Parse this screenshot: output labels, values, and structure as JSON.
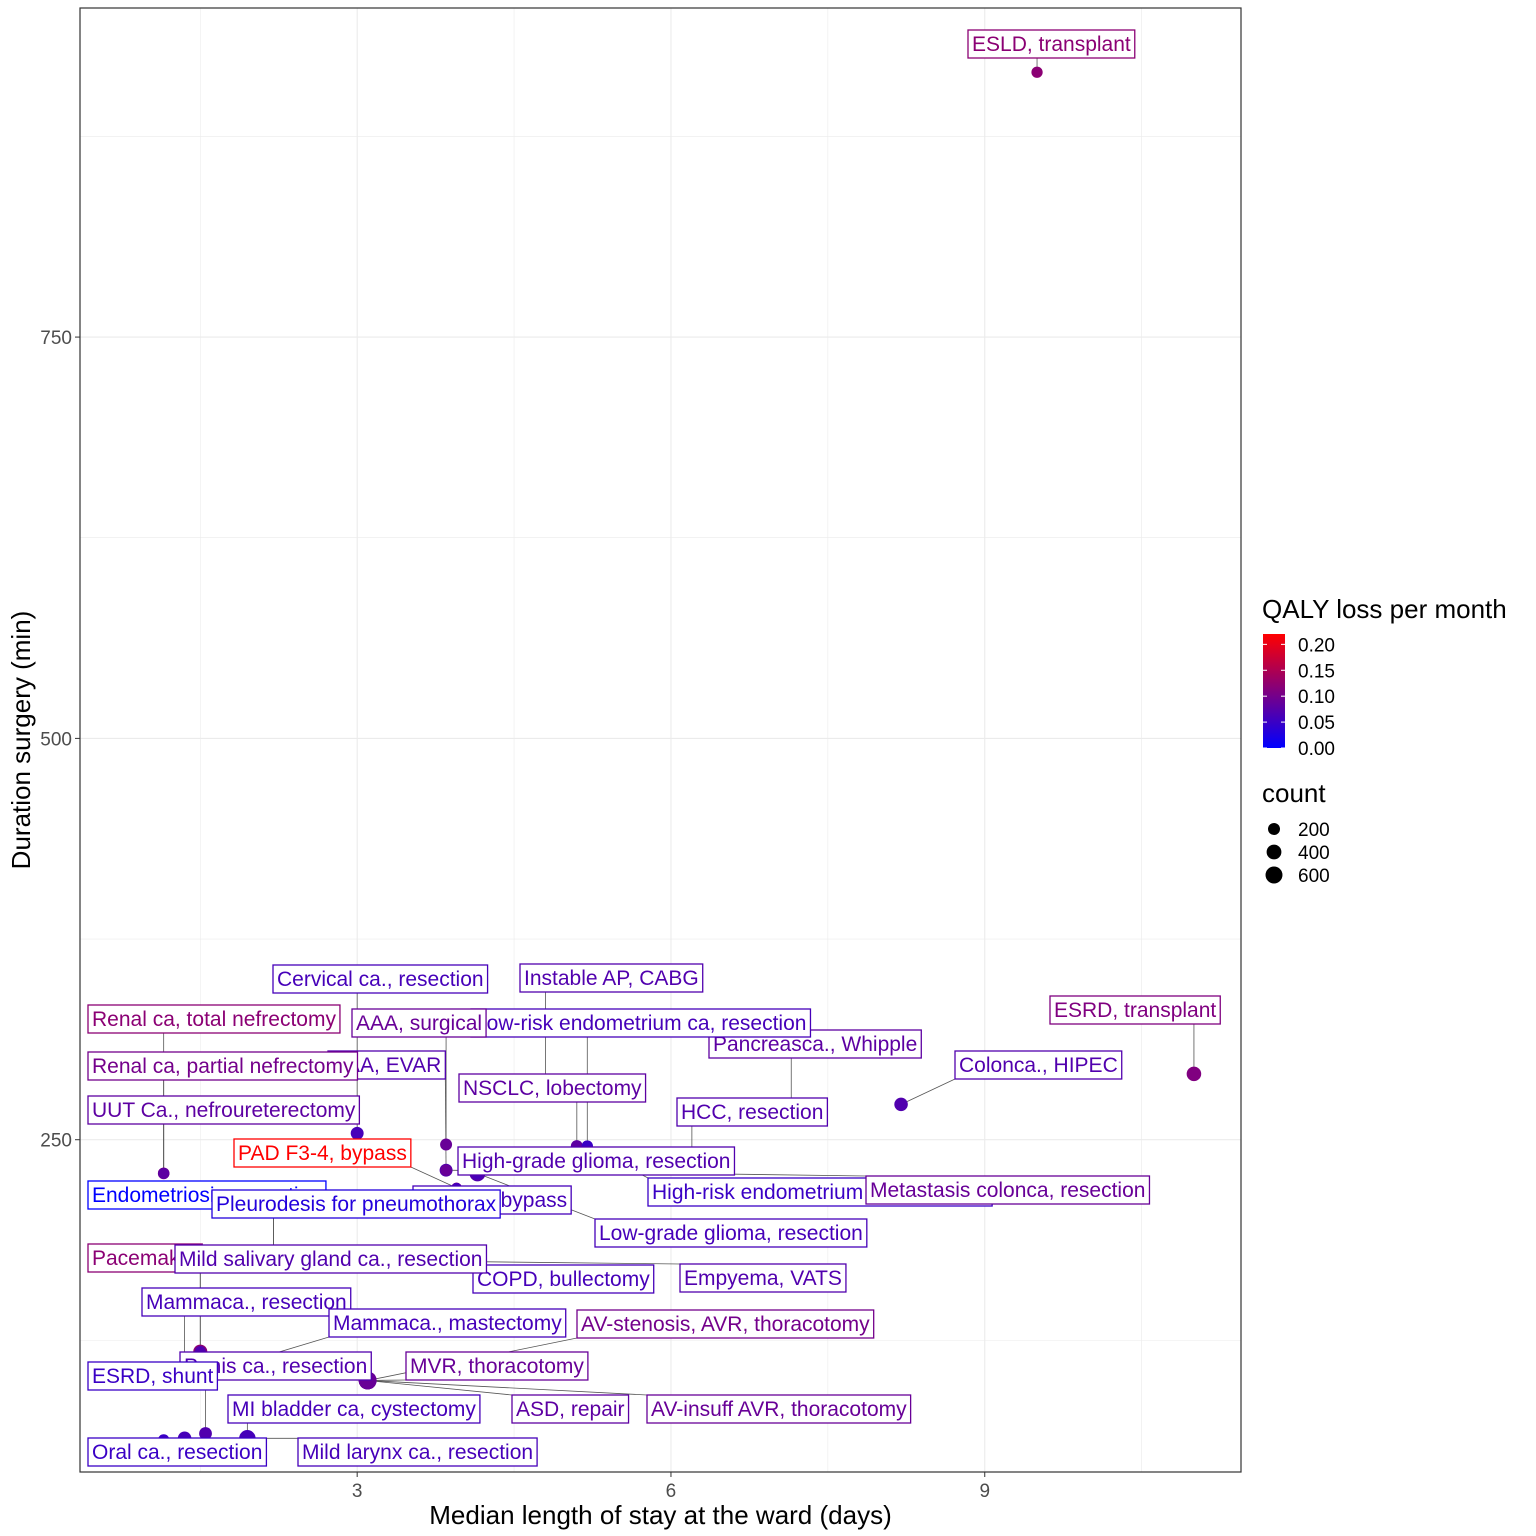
{
  "chart_data": {
    "type": "scatter",
    "title": "",
    "xlabel": "Median length of stay at the ward (days)",
    "ylabel": "Duration surgery (min)",
    "xlim": [
      0.35,
      11.45
    ],
    "ylim": [
      43,
      955
    ],
    "x_ticks": [
      3,
      6,
      9
    ],
    "y_ticks": [
      250,
      500,
      750
    ],
    "grid": true,
    "legend_position": "right",
    "color_legend": {
      "title": "QALY loss per month",
      "min": 0.0,
      "max": 0.22,
      "low_color": "#0000FF",
      "high_color": "#FF0000",
      "ticks": [
        "0.20",
        "0.15",
        "0.10",
        "0.05",
        "0.00"
      ]
    },
    "size_legend": {
      "title": "count",
      "values": [
        200,
        400,
        600
      ],
      "labels": [
        "200",
        "400",
        "600"
      ]
    },
    "points": [
      {
        "label": "ESLD, transplant",
        "x": 9.5,
        "y": 915,
        "qaly": 0.12,
        "count": 160
      },
      {
        "label": "ESRD, transplant",
        "x": 11.0,
        "y": 291,
        "qaly": 0.11,
        "count": 380
      },
      {
        "label": "Colonca., HIPEC",
        "x": 8.2,
        "y": 272,
        "qaly": 0.07,
        "count": 300
      },
      {
        "label": "Pancreasca., Whipple",
        "x": 7.15,
        "y": 267,
        "qaly": 0.08,
        "count": 450
      },
      {
        "label": "HCC, resection",
        "x": 6.2,
        "y": 234,
        "qaly": 0.07,
        "count": 420
      },
      {
        "label": "Instable AP, CABG",
        "x": 4.8,
        "y": 278,
        "qaly": 0.07,
        "count": 380
      },
      {
        "label": "Low-risk endometrium ca, resection",
        "x": 5.2,
        "y": 246,
        "qaly": 0.06,
        "count": 160
      },
      {
        "label": "NSCLC, lobectomy",
        "x": 5.1,
        "y": 246,
        "qaly": 0.08,
        "count": 200
      },
      {
        "label": "AAA, surgical",
        "x": 3.85,
        "y": 247,
        "qaly": 0.09,
        "count": 200
      },
      {
        "label": "AAA, EVAR",
        "x": 3.85,
        "y": 231,
        "qaly": 0.07,
        "count": 260
      },
      {
        "label": "Cervical ca., resection",
        "x": 3.0,
        "y": 254,
        "qaly": 0.06,
        "count": 260
      },
      {
        "label": "High-grade glioma, resection",
        "x": 4.15,
        "y": 229,
        "qaly": 0.07,
        "count": 500
      },
      {
        "label": "High-risk endometrium ca, resection",
        "x": 5.2,
        "y": 246,
        "qaly": 0.05,
        "count": 160
      },
      {
        "label": "Metastasis colonca, resection",
        "x": 3.85,
        "y": 231,
        "qaly": 0.09,
        "count": 160
      },
      {
        "label": "Renal ca, total nefrectomy",
        "x": 1.15,
        "y": 229,
        "qaly": 0.12,
        "count": 180
      },
      {
        "label": "Renal ca, partial nefrectomy",
        "x": 1.15,
        "y": 229,
        "qaly": 0.1,
        "count": 160
      },
      {
        "label": "UUT Ca., nefroureterectomy",
        "x": 1.15,
        "y": 229,
        "qaly": 0.08,
        "count": 160
      },
      {
        "label": "PAD F3-4, bypass",
        "x": 3.95,
        "y": 220,
        "qaly": 0.22,
        "count": 120
      },
      {
        "label": "PAD F2, bypass",
        "x": 3.95,
        "y": 220,
        "qaly": 0.06,
        "count": 120
      },
      {
        "label": "Endometriosis, resection",
        "x": 2.2,
        "y": 180,
        "qaly": 0.0,
        "count": 300
      },
      {
        "label": "Pleurodesis for pneumothorax",
        "x": 2.2,
        "y": 180,
        "qaly": 0.03,
        "count": 160
      },
      {
        "label": "Low-grade glioma, resection",
        "x": 4.15,
        "y": 229,
        "qaly": 0.06,
        "count": 160
      },
      {
        "label": "COPD, bullectomy",
        "x": 4.15,
        "y": 174,
        "qaly": 0.06,
        "count": 140
      },
      {
        "label": "Empyema, VATS",
        "x": 4.15,
        "y": 174,
        "qaly": 0.07,
        "count": 140
      },
      {
        "label": "Pacemaker",
        "x": 1.5,
        "y": 118,
        "qaly": 0.12,
        "count": 340
      },
      {
        "label": "Mild salivary gland ca., resection",
        "x": 1.5,
        "y": 118,
        "qaly": 0.07,
        "count": 160
      },
      {
        "label": "Mammaca., resection",
        "x": 1.35,
        "y": 100,
        "qaly": 0.06,
        "count": 160
      },
      {
        "label": "Mammaca., mastectomy",
        "x": 1.35,
        "y": 100,
        "qaly": 0.06,
        "count": 450
      },
      {
        "label": "AV-stenosis, AVR, thoracotomy",
        "x": 3.1,
        "y": 100,
        "qaly": 0.1,
        "count": 700
      },
      {
        "label": "Penis ca., resection",
        "x": 1.55,
        "y": 67,
        "qaly": 0.07,
        "count": 250
      },
      {
        "label": "MVR, thoracotomy",
        "x": 3.1,
        "y": 100,
        "qaly": 0.09,
        "count": 700
      },
      {
        "label": "ESRD, shunt",
        "x": 1.35,
        "y": 100,
        "qaly": 0.05,
        "count": 450
      },
      {
        "label": "MI bladder ca, cystectomy",
        "x": 1.95,
        "y": 64,
        "qaly": 0.06,
        "count": 550
      },
      {
        "label": "ASD, repair",
        "x": 3.1,
        "y": 100,
        "qaly": 0.08,
        "count": 700
      },
      {
        "label": "AV-insuff AVR, thoracotomy",
        "x": 3.1,
        "y": 100,
        "qaly": 0.09,
        "count": 700
      },
      {
        "label": "Oral ca., resection",
        "x": 1.15,
        "y": 63,
        "qaly": 0.05,
        "count": 160
      },
      {
        "label": "Mild larynx ca., resection",
        "x": 1.35,
        "y": 64,
        "qaly": 0.06,
        "count": 300
      }
    ]
  }
}
